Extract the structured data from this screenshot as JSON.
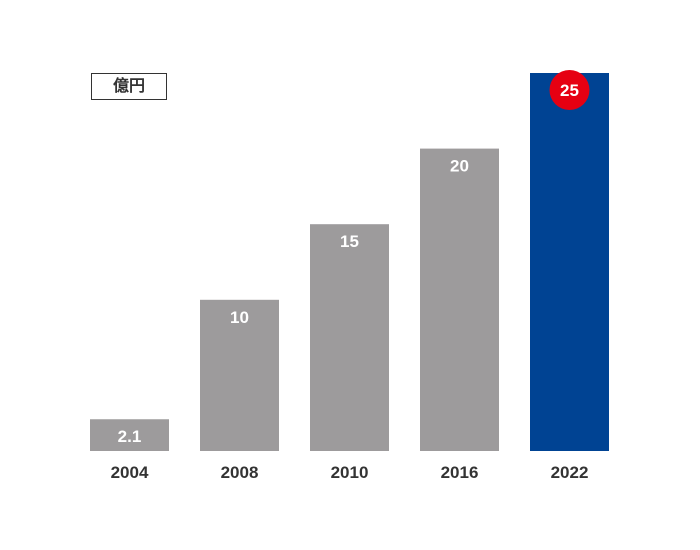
{
  "unit_label": "億円",
  "colors": {
    "bar_default": "#9d9b9c",
    "bar_highlight": "#004393",
    "badge": "#e60012",
    "label_inside": "#ffffff",
    "axis_text": "#333333",
    "unit_border": "#333333"
  },
  "chart_data": {
    "type": "bar",
    "categories": [
      "2004",
      "2008",
      "2010",
      "2016",
      "2022"
    ],
    "values": [
      2.1,
      10,
      15,
      20,
      25
    ],
    "value_labels": [
      "2.1",
      "10",
      "15",
      "20",
      "25"
    ],
    "highlight_index": 4,
    "ylim": [
      0,
      25
    ],
    "title": "",
    "xlabel": "",
    "ylabel": "",
    "unit": "億円",
    "grid": false,
    "legend": "none"
  }
}
